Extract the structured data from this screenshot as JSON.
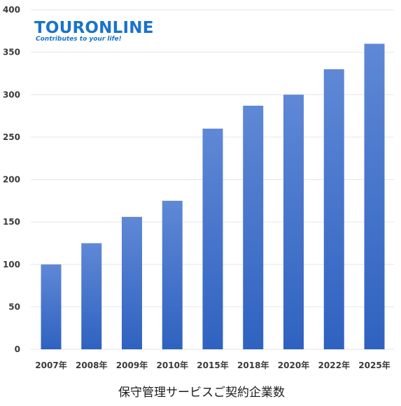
{
  "logo": {
    "name": "TOURONLINE",
    "tagline": "Contributes to your life!"
  },
  "colors": {
    "bar_top": "#5f88d6",
    "bar_bottom": "#2f62c0",
    "grid": "#e6e6e6",
    "logo": "#1a73c9"
  },
  "chart_data": {
    "type": "bar",
    "title": "保守管理サービスご契約企業数",
    "xlabel": "",
    "ylabel": "",
    "categories": [
      "2007年",
      "2008年",
      "2009年",
      "2010年",
      "2015年",
      "2018年",
      "2020年",
      "2022年",
      "2025年"
    ],
    "values": [
      100,
      125,
      156,
      175,
      260,
      287,
      300,
      330,
      360
    ],
    "ylim": [
      0,
      400
    ],
    "yticks": [
      0,
      50,
      100,
      150,
      200,
      250,
      300,
      350,
      400
    ],
    "grid": true,
    "legend": "none"
  }
}
